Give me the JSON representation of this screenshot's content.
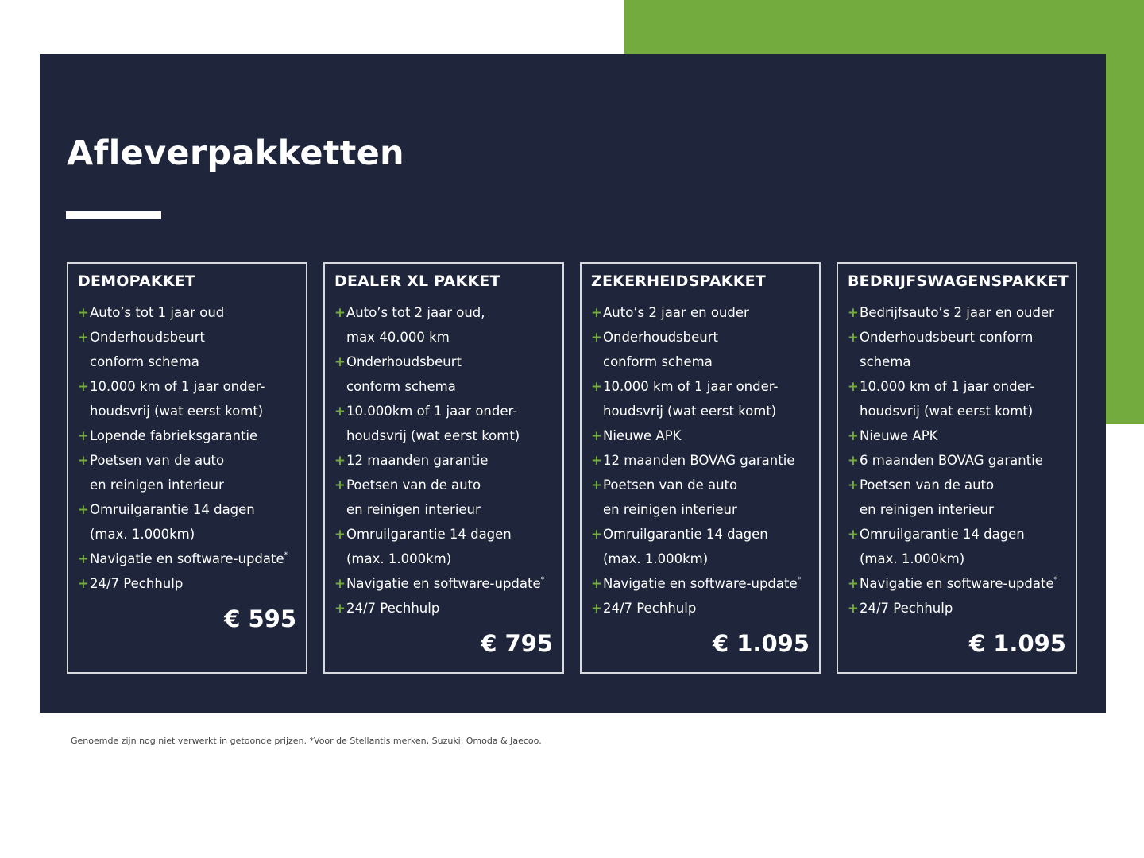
{
  "colors": {
    "navy": "#1f253a",
    "green": "#74ab3f",
    "white": "#ffffff"
  },
  "title": "Afleverpakketten",
  "bullet_icon": "plus-icon",
  "cards": [
    {
      "name": "DEMOPAKKET",
      "price": "€ 595",
      "items": [
        {
          "lines": [
            "Auto’s tot 1 jaar oud"
          ]
        },
        {
          "lines": [
            "Onderhoudsbeurt",
            "conform schema"
          ]
        },
        {
          "lines": [
            "10.000 km of 1 jaar onder-",
            "houdsvrij (wat eerst komt)"
          ]
        },
        {
          "lines": [
            "Lopende fabrieksgarantie"
          ]
        },
        {
          "lines": [
            "Poetsen van de auto",
            "en reinigen interieur"
          ]
        },
        {
          "lines": [
            "Omruilgarantie 14 dagen",
            "(max. 1.000km)"
          ]
        },
        {
          "lines": [
            "Navigatie en software-update"
          ],
          "sup": "*"
        },
        {
          "lines": [
            "24/7 Pechhulp"
          ]
        }
      ]
    },
    {
      "name": "DEALER XL PAKKET",
      "price": "€ 795",
      "items": [
        {
          "lines": [
            "Auto’s tot 2 jaar oud,",
            "max 40.000 km"
          ]
        },
        {
          "lines": [
            "Onderhoudsbeurt",
            "conform schema"
          ]
        },
        {
          "lines": [
            "10.000km of 1 jaar onder-",
            "houdsvrij (wat eerst komt)"
          ]
        },
        {
          "lines": [
            "12 maanden garantie"
          ]
        },
        {
          "lines": [
            "Poetsen van de auto",
            "en reinigen interieur"
          ]
        },
        {
          "lines": [
            "Omruilgarantie 14 dagen",
            "(max. 1.000km)"
          ]
        },
        {
          "lines": [
            "Navigatie en software-update"
          ],
          "sup": "*"
        },
        {
          "lines": [
            "24/7 Pechhulp"
          ]
        }
      ]
    },
    {
      "name": "ZEKERHEIDSPAKKET",
      "price": "€ 1.095",
      "items": [
        {
          "lines": [
            "Auto’s 2 jaar en ouder"
          ]
        },
        {
          "lines": [
            "Onderhoudsbeurt",
            "conform schema"
          ]
        },
        {
          "lines": [
            "10.000 km of 1 jaar onder-",
            "houdsvrij (wat eerst komt)"
          ]
        },
        {
          "lines": [
            "Nieuwe APK"
          ]
        },
        {
          "lines": [
            "12 maanden BOVAG garantie"
          ]
        },
        {
          "lines": [
            "Poetsen van de auto",
            "en reinigen interieur"
          ]
        },
        {
          "lines": [
            "Omruilgarantie 14 dagen",
            "(max. 1.000km)"
          ]
        },
        {
          "lines": [
            "Navigatie en software-update"
          ],
          "sup": "*"
        },
        {
          "lines": [
            "24/7 Pechhulp"
          ]
        }
      ]
    },
    {
      "name": "BEDRIJFSWAGENSPAKKET",
      "price": "€ 1.095",
      "items": [
        {
          "lines": [
            "Bedrijfsauto’s 2 jaar en ouder"
          ]
        },
        {
          "lines": [
            "Onderhoudsbeurt conform",
            "schema"
          ]
        },
        {
          "lines": [
            "10.000 km of 1 jaar onder-",
            "houdsvrij (wat eerst komt)"
          ]
        },
        {
          "lines": [
            "Nieuwe APK"
          ]
        },
        {
          "lines": [
            "6 maanden BOVAG garantie"
          ]
        },
        {
          "lines": [
            "Poetsen van de auto",
            "en reinigen interieur"
          ]
        },
        {
          "lines": [
            "Omruilgarantie 14 dagen",
            "(max. 1.000km)"
          ]
        },
        {
          "lines": [
            "Navigatie en software-update"
          ],
          "sup": "*"
        },
        {
          "lines": [
            "24/7 Pechhulp"
          ]
        }
      ]
    }
  ],
  "footnote": "Genoemde zijn nog niet verwerkt in getoonde prijzen. *Voor de Stellantis merken, Suzuki, Omoda & Jaecoo."
}
